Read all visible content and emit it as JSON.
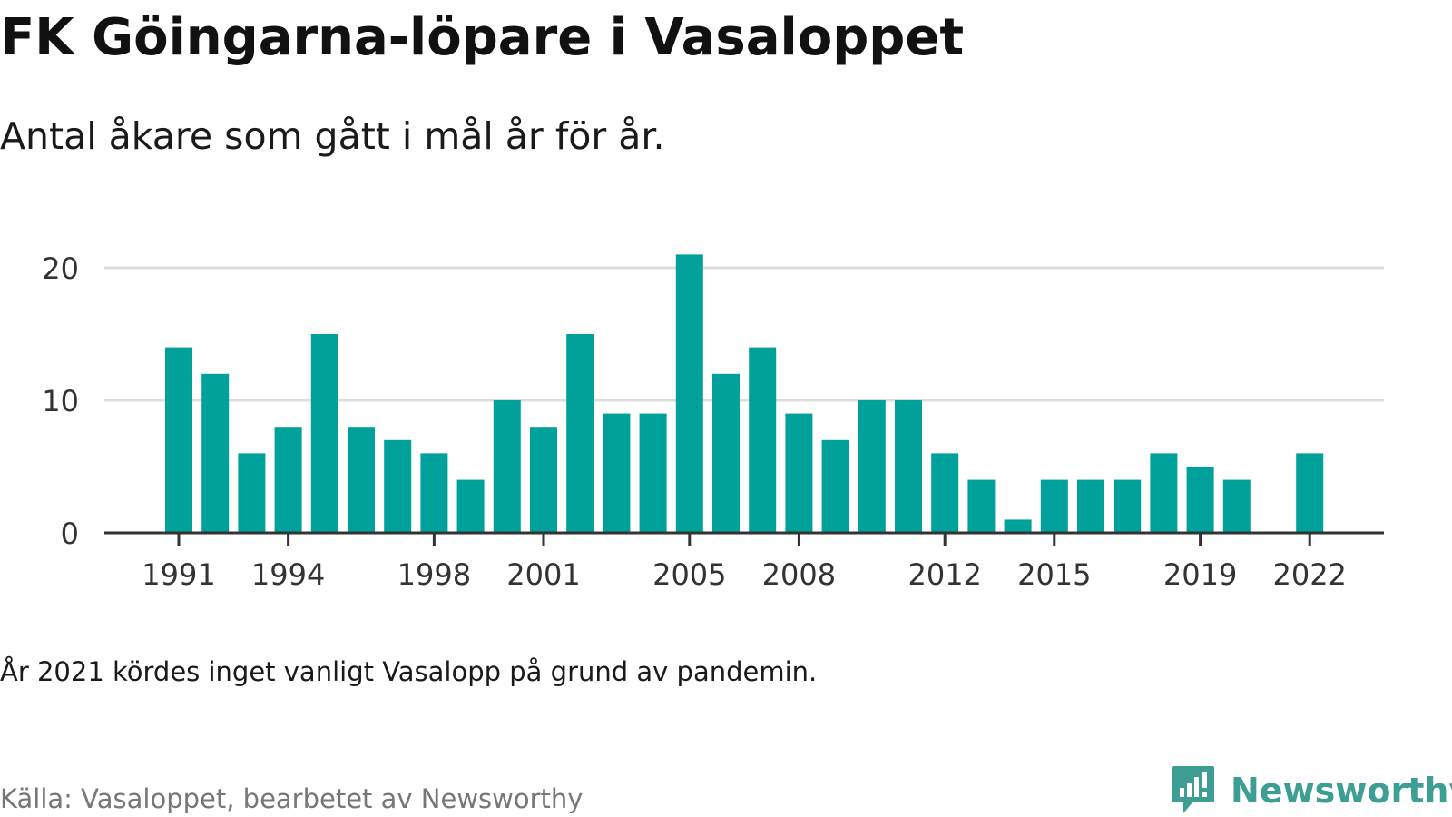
{
  "title": "FK Göingarna-löpare i Vasaloppet",
  "subtitle": "Antal åkare som gått i mål år för år.",
  "note": "År 2021 kördes inget vanligt Vasalopp på grund av pandemin.",
  "source": "Källa: Vasaloppet, bearbetet av Newsworthy",
  "brand": {
    "name": "Newsworthy",
    "icon": "newsworthy-logo-icon",
    "color": "#3d9e93"
  },
  "colors": {
    "bar": "#00a19a",
    "grid": "#dddddd",
    "axis": "#333333"
  },
  "chart_data": {
    "type": "bar",
    "title": "FK Göingarna-löpare i Vasaloppet",
    "subtitle": "Antal åkare som gått i mål år för år.",
    "xlabel": "",
    "ylabel": "",
    "x": [
      1991,
      1992,
      1993,
      1994,
      1995,
      1996,
      1997,
      1998,
      1999,
      2000,
      2001,
      2002,
      2003,
      2004,
      2005,
      2006,
      2007,
      2008,
      2009,
      2010,
      2011,
      2012,
      2013,
      2014,
      2015,
      2016,
      2017,
      2018,
      2019,
      2020,
      2021,
      2022
    ],
    "values": [
      14,
      12,
      6,
      8,
      15,
      8,
      7,
      6,
      4,
      10,
      8,
      15,
      9,
      9,
      21,
      12,
      14,
      9,
      7,
      10,
      10,
      6,
      4,
      1,
      4,
      4,
      4,
      6,
      5,
      4,
      null,
      6
    ],
    "xticks": [
      "1991",
      "1994",
      "1998",
      "2001",
      "2005",
      "2008",
      "2012",
      "2015",
      "2019",
      "2022"
    ],
    "yticks": [
      "0",
      "10",
      "20"
    ],
    "ylim": [
      0,
      21
    ],
    "grid": true,
    "legend": "none"
  }
}
